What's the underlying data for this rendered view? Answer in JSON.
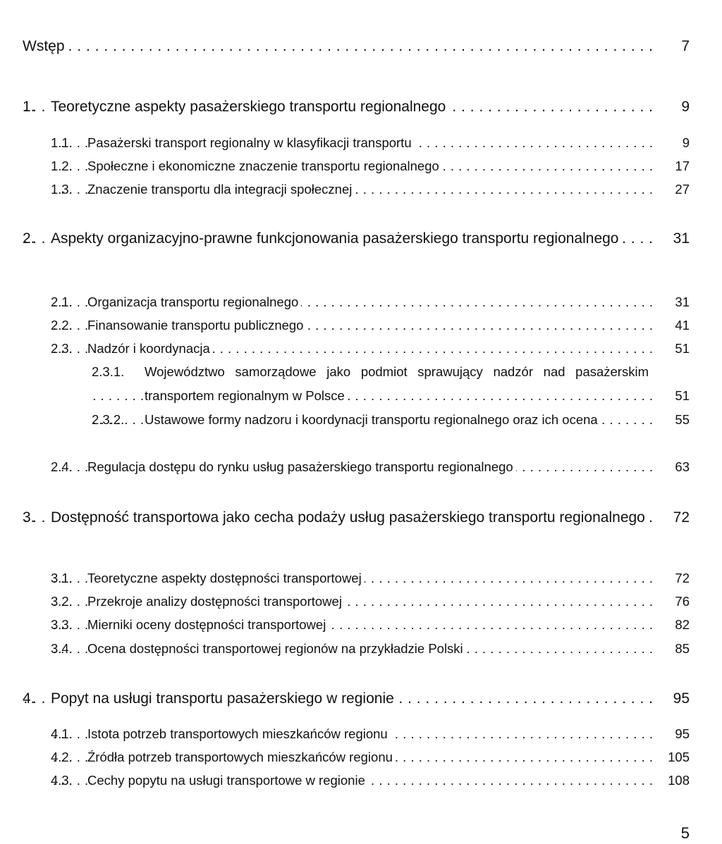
{
  "entries": [
    {
      "title": "Wstęp",
      "page": "7"
    },
    {
      "number": "1.",
      "title": "Teoretyczne aspekty pasażerskiego transportu regionalnego",
      "page": "9"
    },
    {
      "number": "1.1.",
      "title": "Pasażerski transport regionalny w klasyfikacji transportu",
      "page": "9"
    },
    {
      "number": "1.2.",
      "title": "Społeczne i ekonomiczne znaczenie transportu regionalnego",
      "page": "17"
    },
    {
      "number": "1.3.",
      "title": "Znaczenie transportu dla integracji społecznej",
      "page": "27"
    },
    {
      "number": "2.",
      "title": "Aspekty organizacyjno-prawne funkcjonowania pasażerskiego transportu regionalnego",
      "page": "31"
    },
    {
      "number": "2.1.",
      "title": "Organizacja transportu regionalnego",
      "page": "31"
    },
    {
      "number": "2.2.",
      "title": "Finansowanie transportu publicznego",
      "page": "41"
    },
    {
      "number": "2.3.",
      "title": "Nadzór i koordynacja",
      "page": "51"
    },
    {
      "number": "2.3.1.",
      "title": "Województwo samorządowe jako podmiot sprawujący nadzór nad pasażerskim transportem regionalnym w Polsce",
      "page": "51"
    },
    {
      "number": "2.3.2.",
      "title": "Ustawowe formy nadzoru i koordynacji transportu regionalnego oraz ich ocena",
      "page": "55"
    },
    {
      "number": "2.4.",
      "title": "Regulacja dostępu do rynku usług pasażerskiego transportu regionalnego",
      "page": "63"
    },
    {
      "number": "3.",
      "title": "Dostępność transportowa jako cecha podaży usług pasażerskiego transportu regionalnego",
      "page": "72"
    },
    {
      "number": "3.1.",
      "title": "Teoretyczne aspekty dostępności transportowej",
      "page": "72"
    },
    {
      "number": "3.2.",
      "title": "Przekroje analizy dostępności transportowej",
      "page": "76"
    },
    {
      "number": "3.3.",
      "title": "Mierniki oceny dostępności transportowej",
      "page": "82"
    },
    {
      "number": "3.4.",
      "title": "Ocena dostępności transportowej regionów na przykładzie Polski",
      "page": "85"
    },
    {
      "number": "4.",
      "title": "Popyt na usługi transportu pasażerskiego w regionie",
      "page": "95"
    },
    {
      "number": "4.1.",
      "title": "Istota potrzeb transportowych mieszkańców regionu",
      "page": "95"
    },
    {
      "number": "4.2.",
      "title": "Źródła potrzeb transportowych mieszkańców regionu",
      "page": "105"
    },
    {
      "number": "4.3.",
      "title": "Cechy popytu na usługi transportowe w regionie",
      "page": "108"
    }
  ],
  "page_number": "5"
}
